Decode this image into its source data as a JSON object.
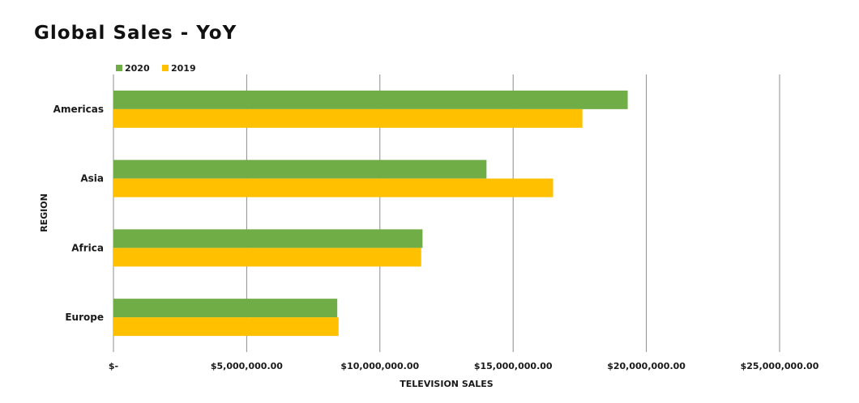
{
  "chart_data": {
    "type": "bar",
    "orientation": "horizontal",
    "title": "Global Sales - YoY",
    "xlabel": "TELEVISION SALES",
    "ylabel": "REGION",
    "categories": [
      "Americas",
      "Asia",
      "Africa",
      "Europe"
    ],
    "series": [
      {
        "name": "2020",
        "color": "#70AD47",
        "values": [
          19300000,
          14000000,
          11600000,
          8400000
        ]
      },
      {
        "name": "2019",
        "color": "#FFC000",
        "values": [
          17600000,
          16500000,
          11550000,
          8450000
        ]
      }
    ],
    "xlim": [
      0,
      25000000
    ],
    "x_ticks": [
      0,
      5000000,
      10000000,
      15000000,
      20000000,
      25000000
    ],
    "x_tick_labels": [
      "$-",
      "$5,000,000.00",
      "$10,000,000.00",
      "$15,000,000.00",
      "$20,000,000.00",
      "$25,000,000.00"
    ],
    "grid": "vertical",
    "legend_position": "top-left"
  }
}
